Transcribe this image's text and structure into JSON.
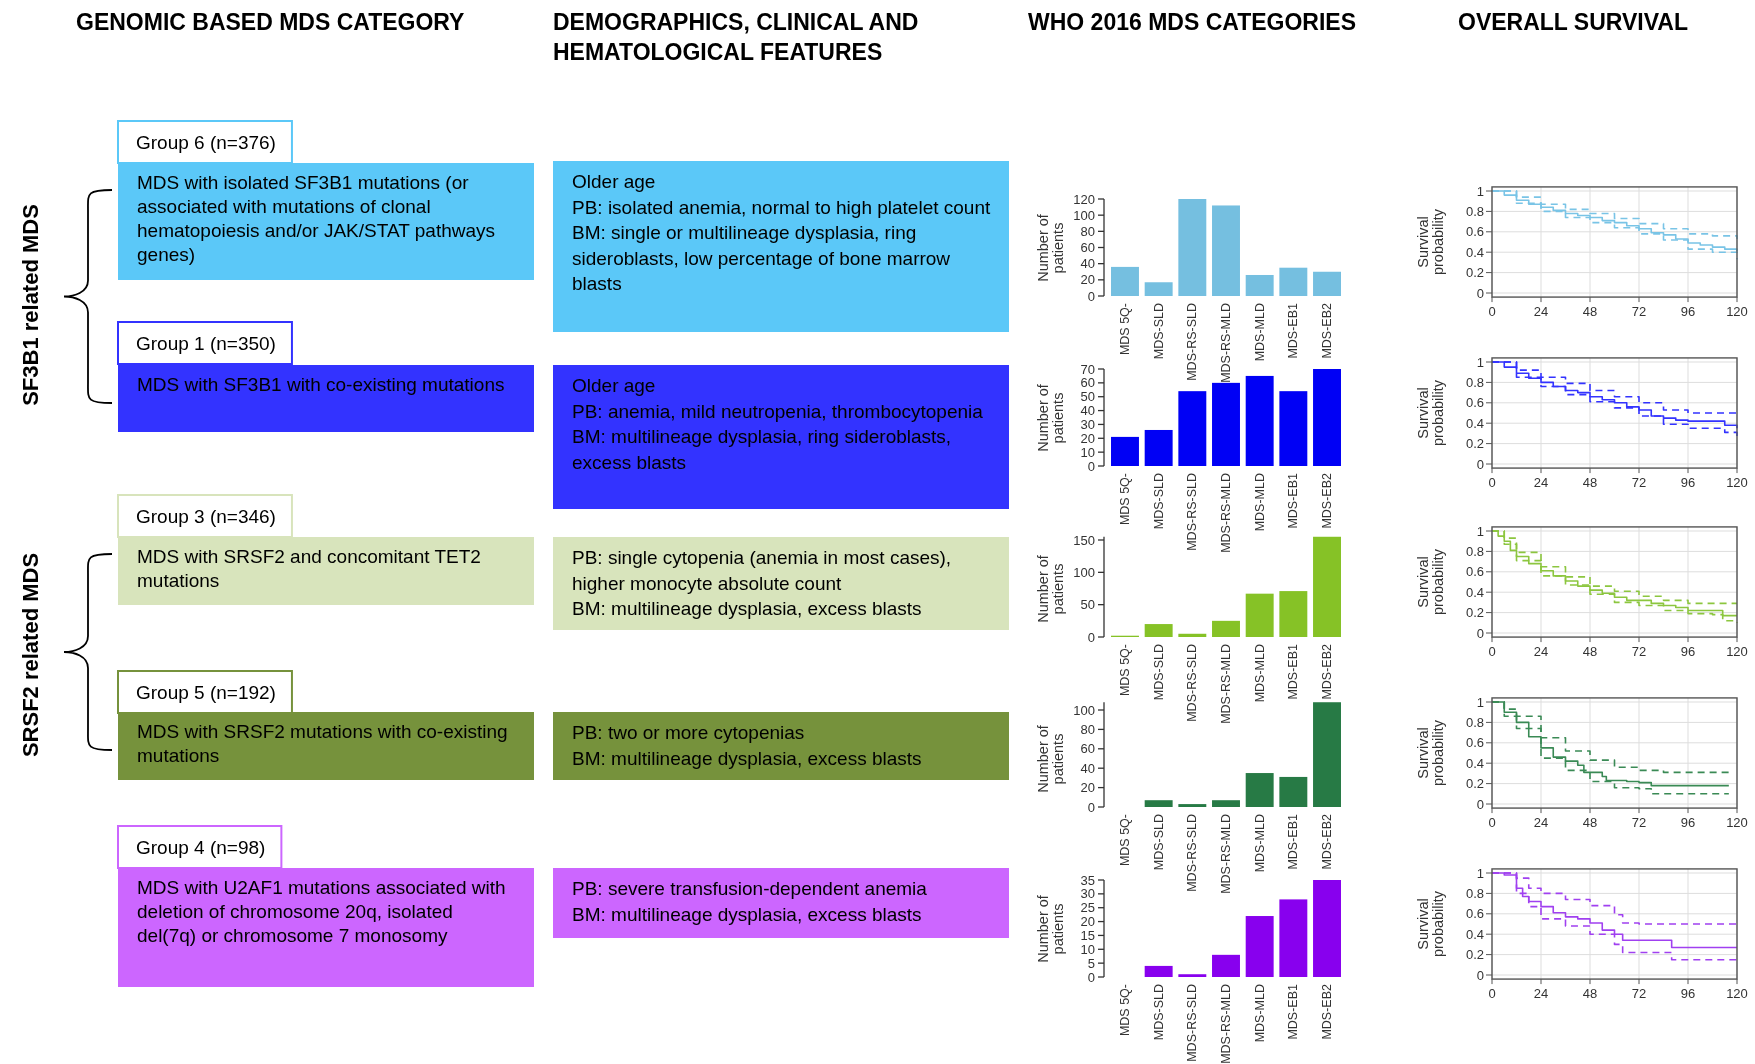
{
  "chart_data": [
    {
      "type": "other",
      "colors": [
        "#5bc8f8",
        "#3333ff",
        "#d8e4bc",
        "#76923c",
        "#cc66ff"
      ],
      "annotations": [
        "GENOMIC BASED MDS CATEGORY",
        "DEMOGRAPHICS, CLINICAL AND HEMATOLOGICAL FEATURES",
        "WHO 2016 MDS CATEGORIES",
        "OVERALL SURVIVAL",
        "SF3B1 related MDS",
        "SRSF2 related MDS",
        "Group 6 (n=376)",
        "MDS with isolated SF3B1 mutations (or associated with mutations of clonal hematopoiesis and/or JAK/STAT pathways genes)",
        "Older age\nPB: isolated anemia, normal to high platelet count\nBM: single or multilineage dysplasia, ring sideroblasts, low percentage of bone marrow blasts",
        "Group 1 (n=350)",
        "MDS with SF3B1 with co-existing mutations",
        "Older age\nPB: anemia, mild neutropenia, thrombocytopenia\nBM: multilineage dysplasia, ring sideroblasts, excess blasts",
        "Group 3 (n=346)",
        "MDS with SRSF2 and concomitant TET2 mutations",
        "PB: single cytopenia (anemia in most cases), higher monocyte absolute count\nBM: multilineage dysplasia, excess blasts",
        "Group 5 (n=192)",
        "MDS with SRSF2 mutations with co-existing mutations",
        "PB: two or more cytopenias\nBM: multilineage dysplasia, excess blasts",
        "Group 4 (n=98)",
        "MDS with U2AF1 mutations associated with deletion of chromosome 20q, isolated del(7q) or chromosome 7 monosomy",
        "PB: severe transfusion-dependent anemia\nBM: multilineage dysplasia, excess blasts"
      ]
    },
    {
      "type": "bar",
      "ylabel": "Number of patients",
      "categories": [
        "MDS 5Q-",
        "MDS-SLD",
        "MDS-RS-SLD",
        "MDS-RS-MLD",
        "MDS-MLD",
        "MDS-EB1",
        "MDS-EB2"
      ],
      "values": [
        36,
        17,
        120,
        112,
        26,
        35,
        30
      ],
      "color": "#75bfe0",
      "ylim": [
        0,
        120
      ],
      "yticks": [
        0,
        20,
        40,
        60,
        80,
        100,
        120
      ]
    },
    {
      "type": "bar",
      "ylabel": "Number of patients",
      "categories": [
        "MDS 5Q-",
        "MDS-SLD",
        "MDS-RS-SLD",
        "MDS-RS-MLD",
        "MDS-MLD",
        "MDS-EB1",
        "MDS-EB2"
      ],
      "values": [
        21,
        26,
        54,
        60,
        65,
        54,
        70
      ],
      "color": "#0000f5",
      "ylim": [
        0,
        70
      ],
      "yticks": [
        0,
        10,
        20,
        30,
        40,
        50,
        60,
        70
      ]
    },
    {
      "type": "bar",
      "ylabel": "Number of patients",
      "categories": [
        "MDS 5Q-",
        "MDS-SLD",
        "MDS-RS-SLD",
        "MDS-RS-MLD",
        "MDS-MLD",
        "MDS-EB1",
        "MDS-EB2"
      ],
      "values": [
        2,
        20,
        5,
        25,
        67,
        71,
        155
      ],
      "color": "#86c226",
      "ylim": [
        0,
        155
      ],
      "yticks": [
        0,
        50,
        100,
        150
      ]
    },
    {
      "type": "bar",
      "ylabel": "Number of patients",
      "categories": [
        "MDS 5Q-",
        "MDS-SLD",
        "MDS-RS-SLD",
        "MDS-RS-MLD",
        "MDS-MLD",
        "MDS-EB1",
        "MDS-EB2"
      ],
      "values": [
        0,
        7,
        3,
        7,
        35,
        31,
        108
      ],
      "color": "#277a45",
      "ylim": [
        0,
        108
      ],
      "yticks": [
        0,
        20,
        40,
        60,
        80,
        100
      ]
    },
    {
      "type": "bar",
      "ylabel": "Number of patients",
      "categories": [
        "MDS 5Q-",
        "MDS-SLD",
        "MDS-RS-SLD",
        "MDS-RS-MLD",
        "MDS-MLD",
        "MDS-EB1",
        "MDS-EB2"
      ],
      "values": [
        0,
        4,
        1,
        8,
        22,
        28,
        35
      ],
      "color": "#8800ee",
      "ylim": [
        0,
        35
      ],
      "yticks": [
        0,
        5,
        10,
        15,
        20,
        25,
        30,
        35
      ]
    },
    {
      "type": "step",
      "ylabel": "Survival probability",
      "xlim": [
        0,
        120
      ],
      "ylim": [
        -0.04,
        1.04
      ],
      "xticks": [
        0,
        24,
        48,
        72,
        96,
        120
      ],
      "yticks": [
        0,
        0.2,
        0.4,
        0.6,
        0.8,
        1
      ],
      "grid": true,
      "series": [
        {
          "color": "#79c4e6",
          "line_style": "solid",
          "x": [
            0,
            6,
            12,
            18,
            24,
            30,
            36,
            42,
            48,
            54,
            60,
            66,
            72,
            78,
            84,
            90,
            96,
            102,
            108,
            114,
            120
          ],
          "values": [
            1,
            0.96,
            0.91,
            0.87,
            0.84,
            0.81,
            0.78,
            0.76,
            0.74,
            0.71,
            0.69,
            0.66,
            0.63,
            0.59,
            0.57,
            0.53,
            0.49,
            0.47,
            0.45,
            0.43,
            0.41
          ]
        },
        {
          "color": "#79c4e6",
          "line_style": "dashed",
          "x": [
            0,
            12,
            24,
            36,
            48,
            60,
            72,
            84,
            96,
            108,
            120
          ],
          "values": [
            1,
            0.94,
            0.87,
            0.82,
            0.78,
            0.73,
            0.68,
            0.63,
            0.58,
            0.56,
            0.53
          ]
        },
        {
          "color": "#79c4e6",
          "line_style": "dashed",
          "x": [
            0,
            12,
            24,
            36,
            48,
            60,
            72,
            84,
            96,
            108,
            120
          ],
          "values": [
            1,
            0.88,
            0.8,
            0.74,
            0.69,
            0.64,
            0.58,
            0.52,
            0.43,
            0.4,
            0.33
          ]
        }
      ]
    },
    {
      "type": "step",
      "ylabel": "Survival probability",
      "xlim": [
        0,
        120
      ],
      "ylim": [
        -0.04,
        1.04
      ],
      "xticks": [
        0,
        24,
        48,
        72,
        96,
        120
      ],
      "yticks": [
        0,
        0.2,
        0.4,
        0.6,
        0.8,
        1
      ],
      "grid": true,
      "series": [
        {
          "color": "#3333ff",
          "line_style": "solid",
          "x": [
            0,
            6,
            12,
            18,
            24,
            30,
            36,
            42,
            48,
            54,
            60,
            66,
            72,
            78,
            84,
            90,
            96,
            102,
            108,
            114,
            120
          ],
          "values": [
            1,
            0.95,
            0.89,
            0.84,
            0.8,
            0.76,
            0.72,
            0.7,
            0.66,
            0.63,
            0.6,
            0.56,
            0.53,
            0.47,
            0.45,
            0.43,
            0.42,
            0.42,
            0.42,
            0.38,
            0.35
          ]
        },
        {
          "color": "#3333ff",
          "line_style": "dashed",
          "x": [
            0,
            12,
            24,
            36,
            48,
            60,
            72,
            84,
            96,
            108,
            120
          ],
          "values": [
            1,
            0.92,
            0.85,
            0.79,
            0.72,
            0.66,
            0.6,
            0.53,
            0.5,
            0.5,
            0.49
          ]
        },
        {
          "color": "#3333ff",
          "line_style": "dashed",
          "x": [
            0,
            12,
            24,
            36,
            48,
            60,
            72,
            84,
            96,
            108,
            114,
            120
          ],
          "values": [
            1,
            0.85,
            0.76,
            0.68,
            0.61,
            0.55,
            0.47,
            0.39,
            0.35,
            0.35,
            0.31,
            0.25
          ]
        }
      ]
    },
    {
      "type": "step",
      "ylabel": "Survival probability",
      "xlim": [
        0,
        120
      ],
      "ylim": [
        -0.04,
        1.04
      ],
      "xticks": [
        0,
        24,
        48,
        72,
        96,
        120
      ],
      "yticks": [
        0,
        0.2,
        0.4,
        0.6,
        0.8,
        1
      ],
      "grid": true,
      "series": [
        {
          "color": "#8cc63f",
          "line_style": "solid",
          "x": [
            0,
            3,
            6,
            9,
            12,
            18,
            24,
            30,
            36,
            42,
            48,
            54,
            60,
            66,
            72,
            78,
            84,
            90,
            96,
            102,
            108,
            113,
            120
          ],
          "values": [
            1,
            0.95,
            0.9,
            0.81,
            0.75,
            0.68,
            0.61,
            0.56,
            0.51,
            0.46,
            0.42,
            0.39,
            0.35,
            0.32,
            0.32,
            0.29,
            0.27,
            0.25,
            0.22,
            0.22,
            0.22,
            0.17,
            0.17
          ]
        },
        {
          "color": "#8cc63f",
          "line_style": "dashed",
          "x": [
            0,
            6,
            12,
            24,
            36,
            48,
            60,
            72,
            84,
            96,
            108,
            120
          ],
          "values": [
            1,
            0.93,
            0.79,
            0.65,
            0.55,
            0.46,
            0.41,
            0.36,
            0.32,
            0.29,
            0.29,
            0.29
          ]
        },
        {
          "color": "#8cc63f",
          "line_style": "dashed",
          "x": [
            0,
            6,
            12,
            24,
            36,
            48,
            60,
            72,
            84,
            96,
            108,
            113,
            120
          ],
          "values": [
            1,
            0.87,
            0.71,
            0.56,
            0.47,
            0.38,
            0.3,
            0.27,
            0.22,
            0.19,
            0.18,
            0.12,
            0.1
          ]
        }
      ]
    },
    {
      "type": "step",
      "ylabel": "Survival probability",
      "xlim": [
        0,
        120
      ],
      "ylim": [
        -0.04,
        1.04
      ],
      "xticks": [
        0,
        24,
        48,
        72,
        96,
        120
      ],
      "yticks": [
        0,
        0.2,
        0.4,
        0.6,
        0.8,
        1
      ],
      "grid": true,
      "series": [
        {
          "color": "#3a8a55",
          "line_style": "solid",
          "x": [
            0,
            6,
            12,
            18,
            24,
            30,
            36,
            42,
            45,
            54,
            56,
            66,
            72,
            78,
            96,
            116
          ],
          "values": [
            1,
            0.9,
            0.8,
            0.66,
            0.55,
            0.46,
            0.42,
            0.38,
            0.31,
            0.27,
            0.23,
            0.22,
            0.21,
            0.18,
            0.18,
            0.18
          ]
        },
        {
          "color": "#3a8a55",
          "line_style": "dashed",
          "x": [
            0,
            6,
            12,
            24,
            36,
            48,
            60,
            72,
            84,
            116
          ],
          "values": [
            1,
            0.93,
            0.86,
            0.65,
            0.52,
            0.43,
            0.36,
            0.33,
            0.31,
            0.31
          ]
        },
        {
          "color": "#3a8a55",
          "line_style": "dashed",
          "x": [
            0,
            6,
            12,
            24,
            36,
            48,
            60,
            72,
            78,
            116
          ],
          "values": [
            1,
            0.86,
            0.74,
            0.45,
            0.33,
            0.22,
            0.16,
            0.15,
            0.1,
            0.1
          ]
        }
      ]
    },
    {
      "type": "step",
      "ylabel": "Survival probability",
      "xlim": [
        0,
        120
      ],
      "ylim": [
        -0.04,
        1.04
      ],
      "xticks": [
        0,
        24,
        48,
        72,
        96,
        120
      ],
      "yticks": [
        0,
        0.2,
        0.4,
        0.6,
        0.8,
        1
      ],
      "grid": true,
      "series": [
        {
          "color": "#a040f0",
          "line_style": "solid",
          "x": [
            0,
            6,
            12,
            15,
            18,
            24,
            30,
            36,
            42,
            48,
            54,
            60,
            64,
            72,
            84,
            88,
            120
          ],
          "values": [
            1,
            0.98,
            0.85,
            0.77,
            0.72,
            0.67,
            0.61,
            0.57,
            0.55,
            0.51,
            0.44,
            0.4,
            0.34,
            0.34,
            0.34,
            0.27,
            0.27
          ]
        },
        {
          "color": "#a040f0",
          "line_style": "dashed",
          "x": [
            0,
            12,
            18,
            24,
            36,
            48,
            60,
            64,
            72,
            120
          ],
          "values": [
            1,
            0.95,
            0.85,
            0.8,
            0.74,
            0.68,
            0.59,
            0.51,
            0.5,
            0.49
          ]
        },
        {
          "color": "#a040f0",
          "line_style": "dashed",
          "x": [
            0,
            12,
            18,
            24,
            36,
            48,
            60,
            64,
            72,
            88,
            120
          ],
          "values": [
            1,
            0.8,
            0.67,
            0.55,
            0.48,
            0.4,
            0.3,
            0.22,
            0.22,
            0.15,
            0.15
          ]
        }
      ]
    }
  ]
}
